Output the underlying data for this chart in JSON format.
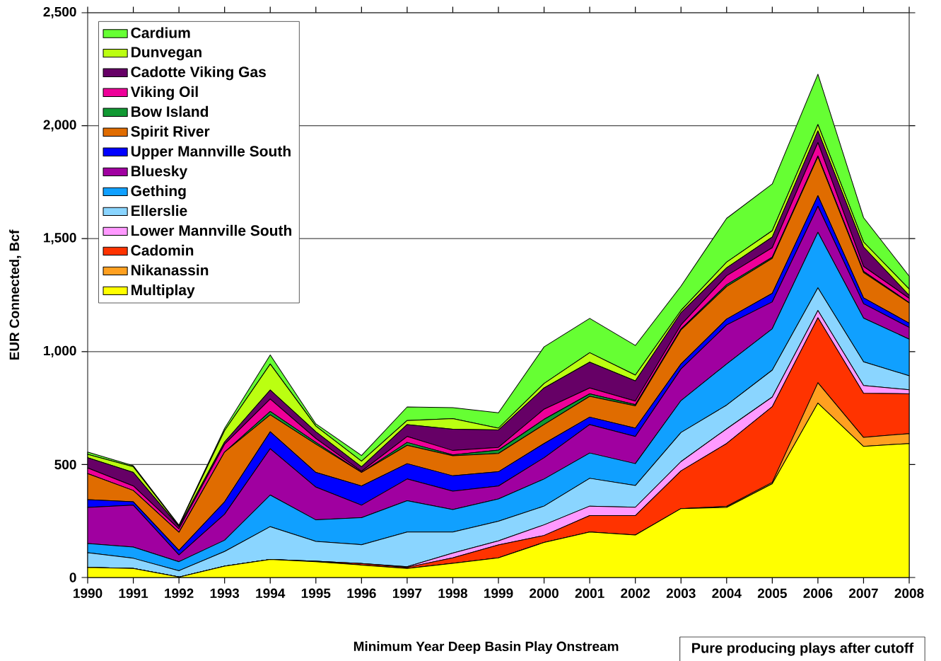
{
  "chart_data": {
    "type": "area",
    "stacked": true,
    "xlabel": "Minimum Year Deep Basin Play Onstream",
    "ylabel": "EUR Connected, Bcf",
    "annotations": [
      "Pure producing plays after cutoff"
    ],
    "categories": [
      "1990",
      "1991",
      "1992",
      "1993",
      "1994",
      "1995",
      "1996",
      "1997",
      "1998",
      "1999",
      "2000",
      "2001",
      "2002",
      "2003",
      "2004",
      "2005",
      "2006",
      "2007",
      "2008"
    ],
    "ylim": [
      0,
      2500
    ],
    "yticks": [
      0,
      500,
      {
        "value": 1000,
        "label": "1,000"
      },
      {
        "value": 1500,
        "label": "1,500"
      },
      {
        "value": 2000,
        "label": "2,000"
      },
      {
        "value": 2500,
        "label": "2,500"
      }
    ],
    "grid": "y",
    "legend": "top left",
    "series": [
      {
        "name": "Multiplay",
        "color": "#ffff00",
        "values": [
          45,
          40,
          2,
          50,
          80,
          70,
          55,
          40,
          63,
          87,
          155,
          201,
          188,
          305,
          310,
          415,
          772,
          580,
          593
        ]
      },
      {
        "name": "Nikanassin",
        "color": "#ffa020",
        "values": [
          0,
          0,
          0,
          0,
          0,
          0,
          0,
          0,
          0,
          0,
          0,
          0,
          0,
          0,
          5,
          6,
          90,
          40,
          44
        ]
      },
      {
        "name": "Cadomin",
        "color": "#ff3300",
        "values": [
          0,
          0,
          0,
          0,
          0,
          2,
          7,
          5,
          24,
          57,
          31,
          73,
          86,
          167,
          278,
          335,
          288,
          195,
          176
        ]
      },
      {
        "name": "Lower Mannville South",
        "color": "#ff99ff",
        "values": [
          0,
          0,
          0,
          0,
          0,
          0,
          0,
          3,
          21,
          18,
          47,
          42,
          37,
          41,
          65,
          43,
          32,
          35,
          18
        ]
      },
      {
        "name": "Ellerslie",
        "color": "#8ad5ff",
        "values": [
          65,
          45,
          28,
          65,
          145,
          88,
          83,
          153,
          93,
          87,
          83,
          123,
          96,
          129,
          105,
          119,
          100,
          105,
          62
        ]
      },
      {
        "name": "Gething",
        "color": "#10a0ff",
        "values": [
          40,
          50,
          40,
          50,
          140,
          95,
          120,
          139,
          100,
          99,
          120,
          112,
          97,
          141,
          182,
          183,
          246,
          193,
          162
        ]
      },
      {
        "name": "Bluesky",
        "color": "#a000a0",
        "values": [
          160,
          185,
          30,
          115,
          205,
          145,
          55,
          96,
          81,
          57,
          94,
          126,
          120,
          140,
          173,
          119,
          115,
          64,
          52
        ]
      },
      {
        "name": "Upper Mannville South",
        "color": "#0000ff",
        "values": [
          35,
          15,
          20,
          55,
          75,
          65,
          85,
          68,
          68,
          63,
          63,
          33,
          37,
          22,
          26,
          38,
          47,
          26,
          19
        ]
      },
      {
        "name": "Spirit River",
        "color": "#e06c00",
        "values": [
          115,
          50,
          80,
          220,
          75,
          125,
          60,
          81,
          89,
          81,
          84,
          92,
          99,
          151,
          144,
          155,
          172,
          112,
          89
        ]
      },
      {
        "name": "Bow Island",
        "color": "#119933",
        "values": [
          0,
          0,
          0,
          0,
          15,
          8,
          0,
          13,
          4,
          15,
          23,
          11,
          5,
          4,
          8,
          5,
          4,
          5,
          2
        ]
      },
      {
        "name": "Viking Oil",
        "color": "#ee0099",
        "values": [
          25,
          20,
          15,
          35,
          55,
          17,
          5,
          26,
          19,
          12,
          45,
          26,
          16,
          18,
          40,
          42,
          59,
          22,
          19
        ]
      },
      {
        "name": "Cadotte Viking Gas",
        "color": "#660066",
        "values": [
          45,
          60,
          10,
          10,
          40,
          30,
          20,
          53,
          94,
          77,
          94,
          114,
          89,
          54,
          35,
          47,
          52,
          86,
          13
        ]
      },
      {
        "name": "Dunvegan",
        "color": "#bbff11",
        "values": [
          15,
          25,
          3,
          50,
          115,
          25,
          25,
          18,
          47,
          8,
          20,
          42,
          26,
          10,
          25,
          28,
          28,
          22,
          28
        ]
      },
      {
        "name": "Cardium",
        "color": "#66ff33",
        "values": [
          10,
          5,
          4,
          10,
          40,
          10,
          25,
          60,
          49,
          68,
          162,
          152,
          131,
          108,
          194,
          207,
          223,
          108,
          57
        ]
      }
    ]
  }
}
